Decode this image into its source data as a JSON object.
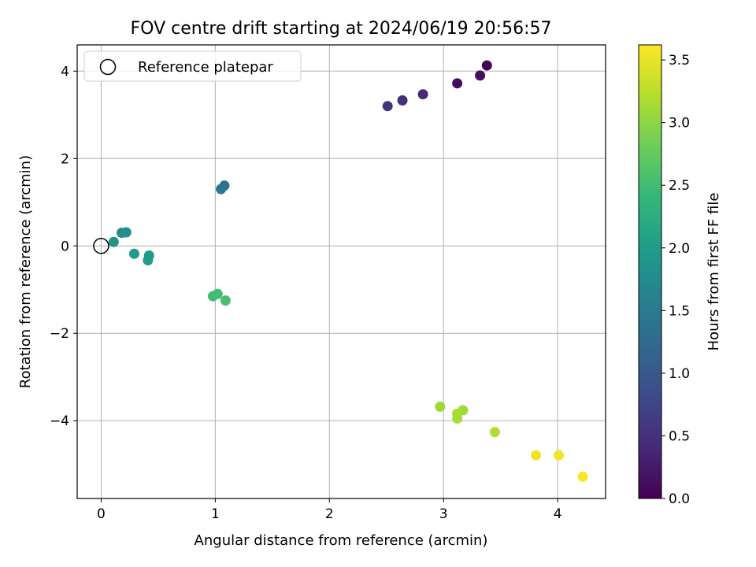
{
  "chart_data": {
    "type": "scatter",
    "title": "FOV centre drift starting at 2024/06/19 20:56:57",
    "xlabel": "Angular distance from reference (arcmin)",
    "ylabel": "Rotation from reference (arcmin)",
    "xlim": [
      -0.21,
      4.42
    ],
    "ylim": [
      -5.78,
      4.6
    ],
    "x_ticks": [
      0,
      1,
      2,
      3,
      4
    ],
    "y_ticks": [
      -4,
      -2,
      0,
      2,
      4
    ],
    "x_tick_labels": [
      "0",
      "1",
      "2",
      "3",
      "4"
    ],
    "y_tick_labels": [
      "−4",
      "−2",
      "0",
      "2",
      "4"
    ],
    "grid": true,
    "legend": {
      "position": "top-left",
      "entries": [
        {
          "label": "Reference platepar",
          "marker": "open-circle",
          "point": {
            "x": 0,
            "y": 0
          }
        }
      ]
    },
    "colorbar": {
      "label": "Hours from first FF file",
      "colormap": "viridis",
      "range": [
        0,
        3.62
      ],
      "ticks": [
        0,
        0.5,
        1,
        1.5,
        2,
        2.5,
        3,
        3.5
      ],
      "tick_labels": [
        "0.0",
        "0.5",
        "1.0",
        "1.5",
        "2.0",
        "2.5",
        "3.0",
        "3.5"
      ]
    },
    "points": [
      {
        "x": 3.38,
        "y": 4.13,
        "c": 0.0
      },
      {
        "x": 3.12,
        "y": 3.72,
        "c": 0.1
      },
      {
        "x": 3.32,
        "y": 3.9,
        "c": 0.15
      },
      {
        "x": 2.82,
        "y": 3.47,
        "c": 0.4
      },
      {
        "x": 2.64,
        "y": 3.33,
        "c": 0.5
      },
      {
        "x": 2.51,
        "y": 3.2,
        "c": 0.55
      },
      {
        "x": 1.08,
        "y": 1.38,
        "c": 1.35
      },
      {
        "x": 1.05,
        "y": 1.3,
        "c": 1.4
      },
      {
        "x": 0.22,
        "y": 0.31,
        "c": 1.75
      },
      {
        "x": 0.18,
        "y": 0.3,
        "c": 1.8
      },
      {
        "x": 0.11,
        "y": 0.09,
        "c": 1.85
      },
      {
        "x": 0.42,
        "y": -0.22,
        "c": 1.95
      },
      {
        "x": 0.29,
        "y": -0.18,
        "c": 2.0
      },
      {
        "x": 0.41,
        "y": -0.33,
        "c": 2.0
      },
      {
        "x": 1.02,
        "y": -1.1,
        "c": 2.5
      },
      {
        "x": 0.98,
        "y": -1.15,
        "c": 2.5
      },
      {
        "x": 1.09,
        "y": -1.25,
        "c": 2.55
      },
      {
        "x": 2.97,
        "y": -3.68,
        "c": 3.1
      },
      {
        "x": 3.17,
        "y": -3.76,
        "c": 3.1
      },
      {
        "x": 3.12,
        "y": -3.84,
        "c": 3.15
      },
      {
        "x": 3.12,
        "y": -3.95,
        "c": 3.15
      },
      {
        "x": 3.45,
        "y": -4.26,
        "c": 3.2
      },
      {
        "x": 3.81,
        "y": -4.79,
        "c": 3.55
      },
      {
        "x": 4.01,
        "y": -4.79,
        "c": 3.55
      },
      {
        "x": 4.22,
        "y": -5.28,
        "c": 3.6
      }
    ]
  }
}
